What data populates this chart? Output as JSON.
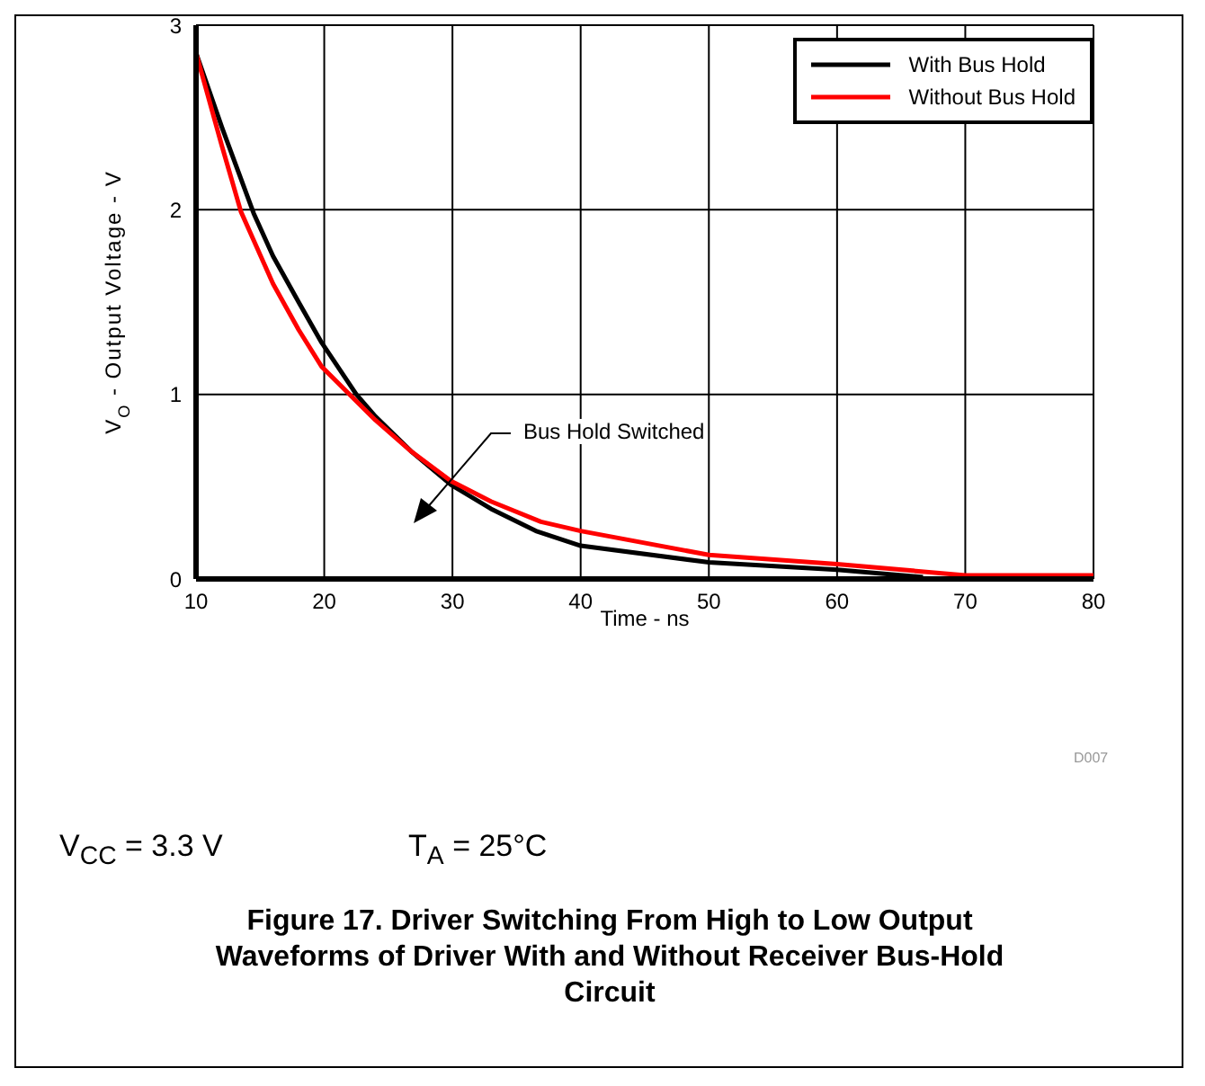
{
  "chart_data": {
    "type": "line",
    "title": "Figure 17. Driver Switching From High to Low Output Waveforms of Driver With and Without Receiver Bus-Hold Circuit",
    "xlabel": "Time - ns",
    "ylabel": "V$_{O}$ - Output Voltage - V",
    "series": [
      {
        "name": "With Bus Hold",
        "color": "#000000",
        "x": [
          10,
          12,
          14.5,
          16,
          18,
          19.8,
          22.5,
          24,
          26.8,
          29.9,
          33,
          36.5,
          40,
          50,
          60,
          66.7
        ],
        "values": [
          2.85,
          2.45,
          1.98,
          1.75,
          1.5,
          1.28,
          1.0,
          0.88,
          0.69,
          0.51,
          0.38,
          0.26,
          0.18,
          0.09,
          0.05,
          0.01
        ]
      },
      {
        "name": "Without Bus Hold",
        "color": "#ff0000",
        "x": [
          10,
          12,
          13.5,
          16,
          18,
          19.8,
          24,
          26.8,
          29.9,
          33,
          36.9,
          40,
          50,
          60,
          70,
          80
        ],
        "values": [
          2.85,
          2.35,
          1.99,
          1.6,
          1.35,
          1.15,
          0.86,
          0.69,
          0.53,
          0.42,
          0.31,
          0.26,
          0.13,
          0.08,
          0.02,
          0.02
        ]
      }
    ],
    "xlim": [
      10,
      80
    ],
    "xticks": [
      10,
      20,
      30,
      40,
      50,
      60,
      70,
      80
    ],
    "ylim": [
      0,
      3
    ],
    "yticks": [
      0,
      1,
      2,
      3
    ],
    "grid": true,
    "legend": "top right",
    "line_style": "solid",
    "marker": "none",
    "annotations": [
      "Bus Hold Switched",
      "D007",
      "V$_{CC}$ = 3.3 V",
      "T$_{A}$ = 25°C"
    ]
  }
}
